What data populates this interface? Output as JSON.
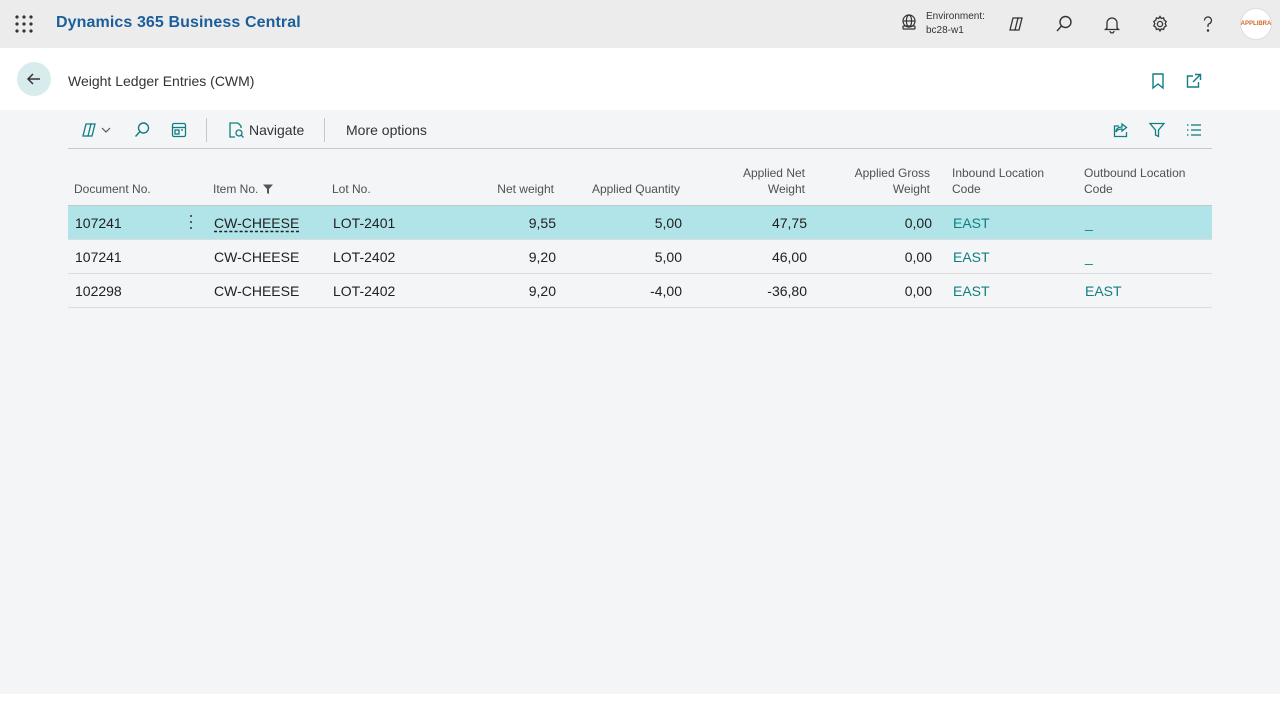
{
  "app": {
    "title": "Dynamics 365 Business Central",
    "environment_label": "Environment:",
    "environment_value": "bc28-w1",
    "avatar_text": "APPLIBRA"
  },
  "page": {
    "title": "Weight Ledger Entries (CWM)"
  },
  "toolbar": {
    "navigate_label": "Navigate",
    "more_options_label": "More options"
  },
  "table": {
    "headers": {
      "document_no": "Document No.",
      "item_no": "Item No.",
      "lot_no": "Lot No.",
      "net_weight": "Net weight",
      "applied_quantity": "Applied Quantity",
      "applied_net_weight_1": "Applied Net",
      "applied_net_weight_2": "Weight",
      "applied_gross_weight_1": "Applied Gross",
      "applied_gross_weight_2": "Weight",
      "inbound_location_1": "Inbound Location",
      "inbound_location_2": "Code",
      "outbound_location_1": "Outbound Location",
      "outbound_location_2": "Code"
    },
    "rows": [
      {
        "document_no": "107241",
        "item_no": "CW-CHEESE",
        "lot_no": "LOT-2401",
        "net_weight": "9,55",
        "applied_quantity": "5,00",
        "applied_net_weight": "47,75",
        "applied_gross_weight": "0,00",
        "inbound_location": "EAST",
        "outbound_location": "_"
      },
      {
        "document_no": "107241",
        "item_no": "CW-CHEESE",
        "lot_no": "LOT-2402",
        "net_weight": "9,20",
        "applied_quantity": "5,00",
        "applied_net_weight": "46,00",
        "applied_gross_weight": "0,00",
        "inbound_location": "EAST",
        "outbound_location": "_"
      },
      {
        "document_no": "102298",
        "item_no": "CW-CHEESE",
        "lot_no": "LOT-2402",
        "net_weight": "9,20",
        "applied_quantity": "-4,00",
        "applied_net_weight": "-36,80",
        "applied_gross_weight": "0,00",
        "inbound_location": "EAST",
        "outbound_location": "EAST"
      }
    ]
  },
  "colors": {
    "brand": "#1b5e9a",
    "accent": "#0f7f81",
    "selected_row": "#b0e4e8"
  }
}
